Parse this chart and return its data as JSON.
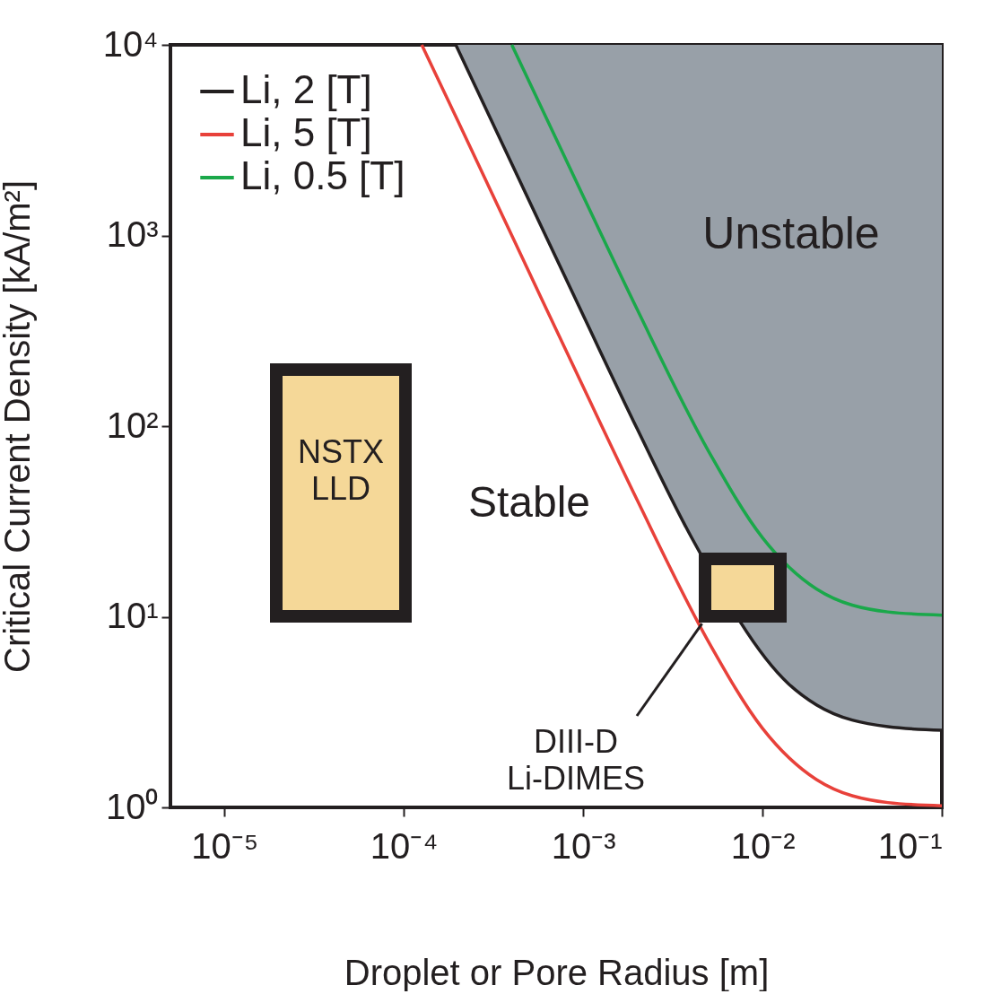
{
  "chart_data": {
    "type": "line",
    "xlabel": "Droplet or Pore Radius [m]",
    "ylabel": "Critical Current Density [kA/m²]",
    "log": "xy",
    "xlim": [
      5e-06,
      0.1
    ],
    "ylim": [
      1,
      10000
    ],
    "xticks": [
      {
        "value": 1e-05,
        "label": "10⁻⁵"
      },
      {
        "value": 0.0001,
        "label": "10⁻⁴"
      },
      {
        "value": 0.001,
        "label": "10⁻³"
      },
      {
        "value": 0.01,
        "label": "10⁻²"
      },
      {
        "value": 0.1,
        "label": "10⁻¹"
      }
    ],
    "yticks": [
      {
        "value": 1,
        "label": "10⁰"
      },
      {
        "value": 10,
        "label": "10¹"
      },
      {
        "value": 100,
        "label": "10²"
      },
      {
        "value": 1000,
        "label": "10³"
      },
      {
        "value": 10000,
        "label": "10⁴"
      }
    ],
    "grid": false,
    "legend": "top left",
    "line_style": "solid",
    "marker": "none",
    "series": [
      {
        "name": "Li, 2 [T]",
        "color": "#231f20",
        "x": [
          0.000195,
          0.0005,
          0.001,
          0.002,
          0.004,
          0.014,
          0.02,
          0.05,
          0.1
        ],
        "values": [
          10000,
          1522,
          382,
          97,
          26.3,
          4.44,
          3.45,
          2.65,
          2.54
        ],
        "lower": [
          10000,
          1522,
          382,
          97,
          26.3,
          4.44,
          3.45,
          2.65,
          2.54
        ],
        "upper": [
          10000,
          10000,
          10000,
          10000,
          10000,
          10000,
          10000,
          10000,
          10000
        ]
      },
      {
        "name": "Li, 5 [T]",
        "color": "#e8413a",
        "x": [
          0.000126,
          0.0002,
          0.0005,
          0.001,
          0.002,
          0.005,
          0.01,
          0.02,
          0.05,
          0.1
        ],
        "values": [
          10000,
          4001,
          641,
          161,
          41,
          7.4,
          2.6,
          1.4,
          1.06,
          1.02
        ]
      },
      {
        "name": "Li, 0.5 [T]",
        "color": "#1aa84a",
        "x": [
          0.0004,
          0.001,
          0.002,
          0.005,
          0.01,
          0.02,
          0.05,
          0.1
        ],
        "values": [
          10000,
          1610,
          410,
          74,
          26,
          14,
          10.6,
          10.2
        ]
      }
    ],
    "annotations": [
      "NSTX\nLLD",
      "Stable",
      "Unstable",
      {
        "text": "DIII-D\nLi-DIMES",
        "x": 0.0046,
        "y": 9.2
      }
    ]
  }
}
